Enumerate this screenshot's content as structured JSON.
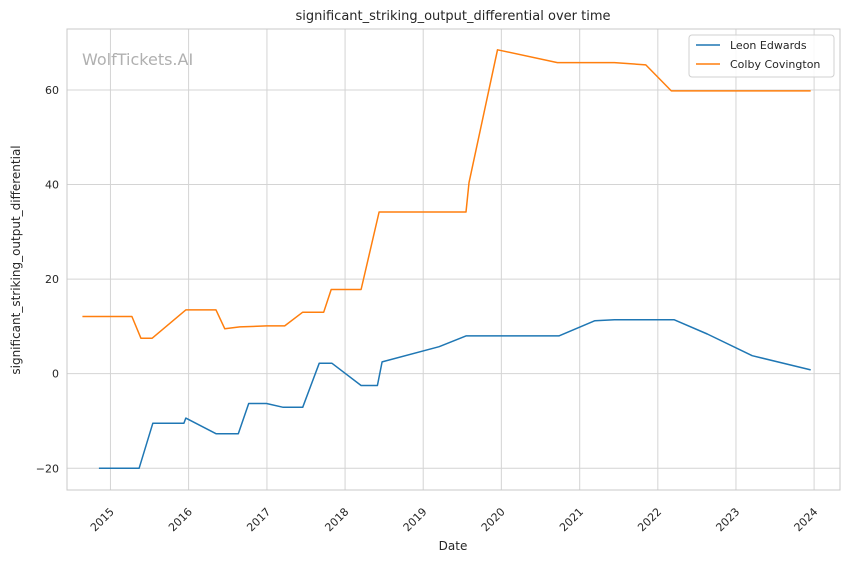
{
  "chart_data": {
    "type": "line",
    "title": "significant_striking_output_differential over time",
    "xlabel": "Date",
    "ylabel": "significant_striking_output_differential",
    "watermark": "WolfTickets.AI",
    "xlim": [
      "2014-06-12",
      "2024-05-01"
    ],
    "ylim": [
      -24.6,
      72.9
    ],
    "x_ticks": [
      "2015",
      "2016",
      "2017",
      "2018",
      "2019",
      "2020",
      "2021",
      "2022",
      "2023",
      "2024"
    ],
    "y_ticks": [
      -20,
      0,
      20,
      40,
      60
    ],
    "grid": true,
    "legend_position": "top-right",
    "series": [
      {
        "name": "Leon Edwards",
        "color": "#1f77b4",
        "points": [
          [
            "2014-11-08",
            -20
          ],
          [
            "2015-05-15",
            -20
          ],
          [
            "2015-07-18",
            -10.5
          ],
          [
            "2015-12-10",
            -10.5
          ],
          [
            "2015-12-19",
            -9.4
          ],
          [
            "2016-05-08",
            -12.7
          ],
          [
            "2016-08-20",
            -12.7
          ],
          [
            "2016-10-08",
            -6.3
          ],
          [
            "2016-12-30",
            -6.3
          ],
          [
            "2017-03-18",
            -7.1
          ],
          [
            "2017-06-17",
            -7.1
          ],
          [
            "2017-09-02",
            2.2
          ],
          [
            "2017-11-01",
            2.2
          ],
          [
            "2018-03-17",
            -2.5
          ],
          [
            "2018-06-01",
            -2.5
          ],
          [
            "2018-06-23",
            2.5
          ],
          [
            "2019-03-16",
            5.7
          ],
          [
            "2019-07-20",
            8.0
          ],
          [
            "2020-09-26",
            8.0
          ],
          [
            "2021-03-13",
            11.2
          ],
          [
            "2021-06-12",
            11.4
          ],
          [
            "2022-03-19",
            11.4
          ],
          [
            "2022-08-20",
            8.4
          ],
          [
            "2023-03-18",
            3.8
          ],
          [
            "2023-12-16",
            0.8
          ]
        ]
      },
      {
        "name": "Colby Covington",
        "color": "#ff7f0e",
        "points": [
          [
            "2014-08-23",
            12.1
          ],
          [
            "2015-04-11",
            12.1
          ],
          [
            "2015-05-23",
            7.5
          ],
          [
            "2015-07-15",
            7.5
          ],
          [
            "2015-12-19",
            13.5
          ],
          [
            "2016-05-08",
            13.5
          ],
          [
            "2016-06-18",
            9.5
          ],
          [
            "2016-08-27",
            9.9
          ],
          [
            "2016-12-30",
            10.1
          ],
          [
            "2017-03-25",
            10.1
          ],
          [
            "2017-06-17",
            13.0
          ],
          [
            "2017-09-23",
            13.0
          ],
          [
            "2017-10-28",
            17.8
          ],
          [
            "2018-03-17",
            17.8
          ],
          [
            "2018-06-09",
            34.2
          ],
          [
            "2019-07-20",
            34.2
          ],
          [
            "2019-08-03",
            40.4
          ],
          [
            "2019-12-14",
            68.5
          ],
          [
            "2020-09-19",
            65.8
          ],
          [
            "2021-06-12",
            65.8
          ],
          [
            "2021-11-06",
            65.3
          ],
          [
            "2022-03-05",
            59.8
          ],
          [
            "2023-12-16",
            59.8
          ]
        ]
      }
    ]
  }
}
